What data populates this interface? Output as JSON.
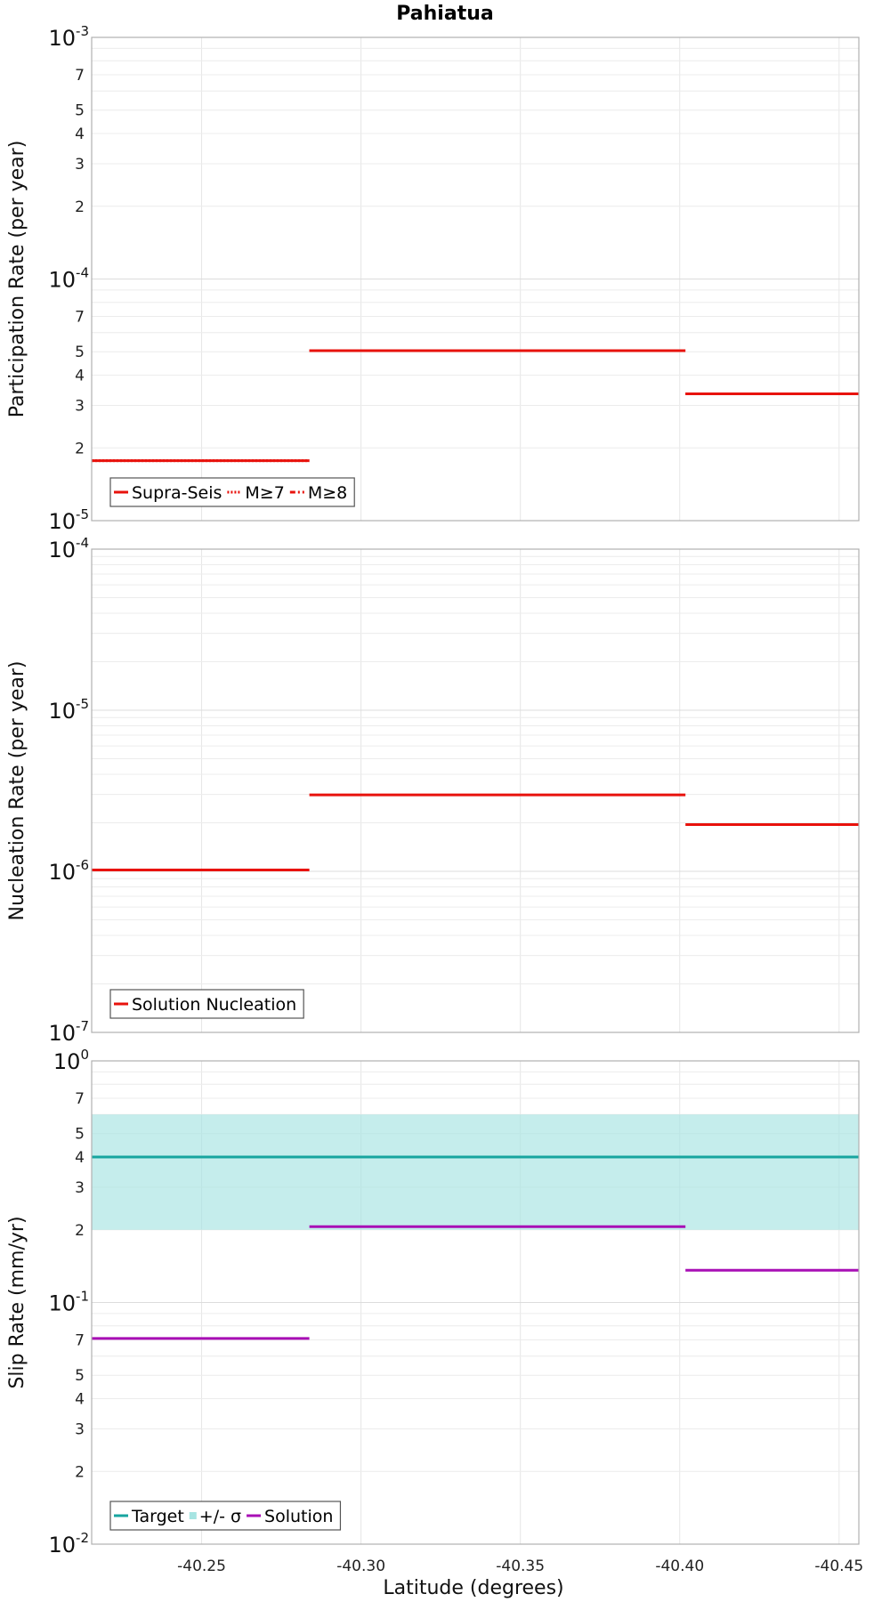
{
  "chart_data": [
    {
      "type": "line",
      "step": true,
      "title": "Pahiatua",
      "xlabel": "",
      "ylabel": "Participation Rate (per year)",
      "yscale": "log",
      "ylim": [
        1e-05,
        0.001
      ],
      "xlim": [
        -40.2155,
        -40.4562
      ],
      "grid": true,
      "legend_position": "bottom-left",
      "series": [
        {
          "name": "Supra-Seis",
          "style": "solid",
          "color": "#e8120c",
          "segments": [
            {
              "x": [
                -40.2155,
                -40.2838
              ],
              "y": 1.77e-05
            },
            {
              "x": [
                -40.2838,
                -40.4018
              ],
              "y": 5.05e-05
            },
            {
              "x": [
                -40.4018,
                -40.4562
              ],
              "y": 3.35e-05
            }
          ]
        },
        {
          "name": "M≥7",
          "style": "dotted",
          "color": "#e8120c",
          "segments": [
            {
              "x": [
                -40.2155,
                -40.2838
              ],
              "y": 1.77e-05
            },
            {
              "x": [
                -40.2838,
                -40.4018
              ],
              "y": 5.05e-05
            },
            {
              "x": [
                -40.4018,
                -40.4562
              ],
              "y": 3.35e-05
            }
          ]
        },
        {
          "name": "M≥8",
          "style": "dash-dot",
          "color": "#e8120c",
          "segments": []
        }
      ]
    },
    {
      "type": "line",
      "step": true,
      "title": "",
      "xlabel": "",
      "ylabel": "Nucleation Rate (per year)",
      "yscale": "log",
      "ylim": [
        1e-07,
        0.0001
      ],
      "xlim": [
        -40.2155,
        -40.4562
      ],
      "grid": true,
      "legend_position": "bottom-left",
      "series": [
        {
          "name": "Solution Nucleation",
          "style": "solid",
          "color": "#e8120c",
          "segments": [
            {
              "x": [
                -40.2155,
                -40.2838
              ],
              "y": 1.02e-06
            },
            {
              "x": [
                -40.2838,
                -40.4018
              ],
              "y": 2.98e-06
            },
            {
              "x": [
                -40.4018,
                -40.4562
              ],
              "y": 1.95e-06
            }
          ]
        }
      ]
    },
    {
      "type": "line",
      "step": true,
      "title": "",
      "xlabel": "Latitude (degrees)",
      "ylabel": "Slip Rate (mm/yr)",
      "yscale": "log",
      "ylim": [
        0.01,
        1
      ],
      "xlim": [
        -40.2155,
        -40.4562
      ],
      "grid": true,
      "legend_position": "bottom-left",
      "band": {
        "name": "+/- σ",
        "color": "#a6e4e2",
        "lower": 0.2,
        "upper": 0.6
      },
      "series": [
        {
          "name": "Target",
          "style": "solid",
          "color": "#17a59f",
          "segments": [
            {
              "x": [
                -40.2155,
                -40.4562
              ],
              "y": 0.4
            }
          ]
        },
        {
          "name": "Solution",
          "style": "solid",
          "color": "#a80fb5",
          "segments": [
            {
              "x": [
                -40.2155,
                -40.2838
              ],
              "y": 0.071
            },
            {
              "x": [
                -40.2838,
                -40.4018
              ],
              "y": 0.206
            },
            {
              "x": [
                -40.4018,
                -40.4562
              ],
              "y": 0.136
            }
          ]
        }
      ],
      "xticks": [
        -40.25,
        -40.3,
        -40.35,
        -40.4,
        -40.45
      ],
      "xtick_labels": [
        "-40.25",
        "-40.30",
        "-40.35",
        "-40.40",
        "-40.45"
      ]
    }
  ]
}
